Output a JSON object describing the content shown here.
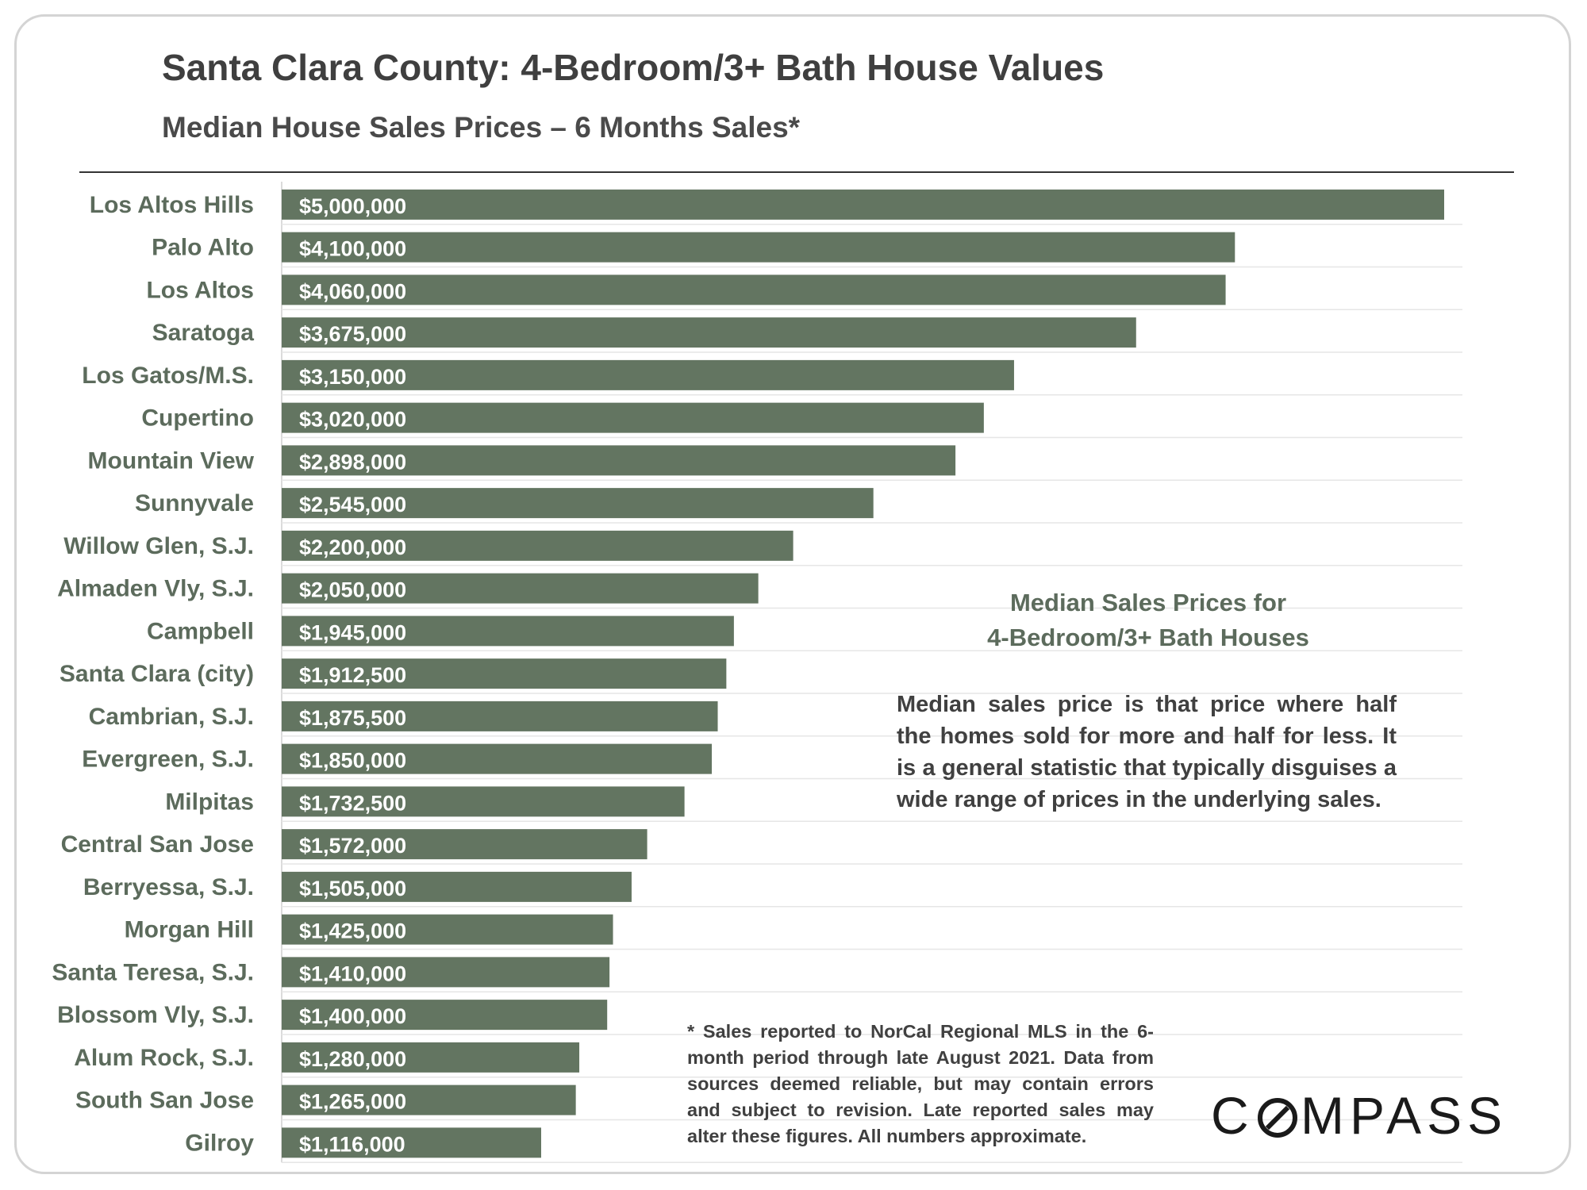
{
  "header": {
    "title": "Santa Clara County: 4-Bedroom/3+ Bath House Values",
    "subtitle": "Median House Sales Prices – 6 Months Sales*"
  },
  "info_box": {
    "title_line1": "Median Sales Prices for",
    "title_line2": "4-Bedroom/3+ Bath Houses",
    "body": "Median sales price is that price where half the homes sold for more and half for less. It is a general statistic that typically disguises a wide range of prices in the underlying sales."
  },
  "footnote": "* Sales reported to NorCal Regional MLS in the 6-month period through late August 2021. Data from sources deemed reliable, but may contain errors and subject to revision. Late reported sales may alter these figures. All numbers approximate.",
  "logo": {
    "text_before": "C",
    "text_after": "MPASS"
  },
  "colors": {
    "bar": "#637561",
    "bar_label": "#ffffff",
    "category_label": "#5c6b5c",
    "grid": "#e6e6e6",
    "title": "#3f3f3f"
  },
  "chart_data": {
    "type": "bar",
    "orientation": "horizontal",
    "title": "Santa Clara County: 4-Bedroom/3+ Bath House Values",
    "subtitle": "Median House Sales Prices – 6 Months Sales*",
    "xlabel": "",
    "ylabel": "",
    "xlim": [
      0,
      5000000
    ],
    "grid": true,
    "categories": [
      "Los Altos Hills",
      "Palo Alto",
      "Los Altos",
      "Saratoga",
      "Los Gatos/M.S.",
      "Cupertino",
      "Mountain View",
      "Sunnyvale",
      "Willow Glen, S.J.",
      "Almaden Vly, S.J.",
      "Campbell",
      "Santa Clara (city)",
      "Cambrian, S.J.",
      "Evergreen, S.J.",
      "Milpitas",
      "Central San Jose",
      "Berryessa, S.J.",
      "Morgan Hill",
      "Santa Teresa, S.J.",
      "Blossom Vly, S.J.",
      "Alum Rock, S.J.",
      "South San Jose",
      "Gilroy"
    ],
    "values": [
      5000000,
      4100000,
      4060000,
      3675000,
      3150000,
      3020000,
      2898000,
      2545000,
      2200000,
      2050000,
      1945000,
      1912500,
      1875500,
      1850000,
      1732500,
      1572000,
      1505000,
      1425000,
      1410000,
      1400000,
      1280000,
      1265000,
      1116000
    ],
    "value_labels": [
      "$5,000,000",
      "$4,100,000",
      "$4,060,000",
      "$3,675,000",
      "$3,150,000",
      "$3,020,000",
      "$2,898,000",
      "$2,545,000",
      "$2,200,000",
      "$2,050,000",
      "$1,945,000",
      "$1,912,500",
      "$1,875,500",
      "$1,850,000",
      "$1,732,500",
      "$1,572,000",
      "$1,505,000",
      "$1,425,000",
      "$1,410,000",
      "$1,400,000",
      "$1,280,000",
      "$1,265,000",
      "$1,116,000"
    ]
  }
}
